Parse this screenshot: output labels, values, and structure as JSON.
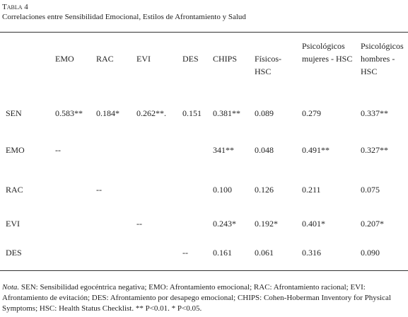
{
  "label": "Tabla 4",
  "title": "Correlaciones entre Sensibilidad Emocional, Estilos de Afrontamiento y Salud",
  "table": {
    "headers": [
      "EMO",
      "RAC",
      "EVI",
      "DES",
      "CHIPS",
      "Físicos-HSC",
      "Psicológicos mujeres - HSC",
      "Psicológicos hombres - HSC"
    ],
    "rows": [
      {
        "label": "SEN",
        "cells": [
          "0.583**",
          "0.184*",
          "0.262**.",
          "0.151",
          "0.381**",
          "0.089",
          "0.279",
          "0.337**"
        ]
      },
      {
        "label": "EMO",
        "cells": [
          "--",
          null,
          null,
          null,
          "341**",
          "0.048",
          "0.491**",
          "0.327**"
        ]
      },
      {
        "label": "RAC",
        "cells": [
          null,
          "--",
          null,
          null,
          "0.100",
          "0.126",
          "0.211",
          "0.075"
        ]
      },
      {
        "label": "EVI",
        "cells": [
          null,
          null,
          "--",
          null,
          "0.243*",
          "0.192*",
          "0.401*",
          "0.207*"
        ]
      },
      {
        "label": "DES",
        "cells": [
          null,
          null,
          null,
          "--",
          "0.161",
          "0.061",
          "0.316",
          "0.090"
        ]
      }
    ]
  },
  "note": {
    "label": "Nota.",
    "text": "SEN: Sensibilidad egocéntrica negativa; EMO: Afrontamiento emocional; RAC: Afrontamiento racional; EVI: Afrontamiento de evitación; DES: Afrontamiento por desapego emocional; CHIPS: Cohen-Hoberman Inventory for Physical Symptoms; HSC: Health Status Checklist. ** P<0.01. * P<0.05."
  }
}
